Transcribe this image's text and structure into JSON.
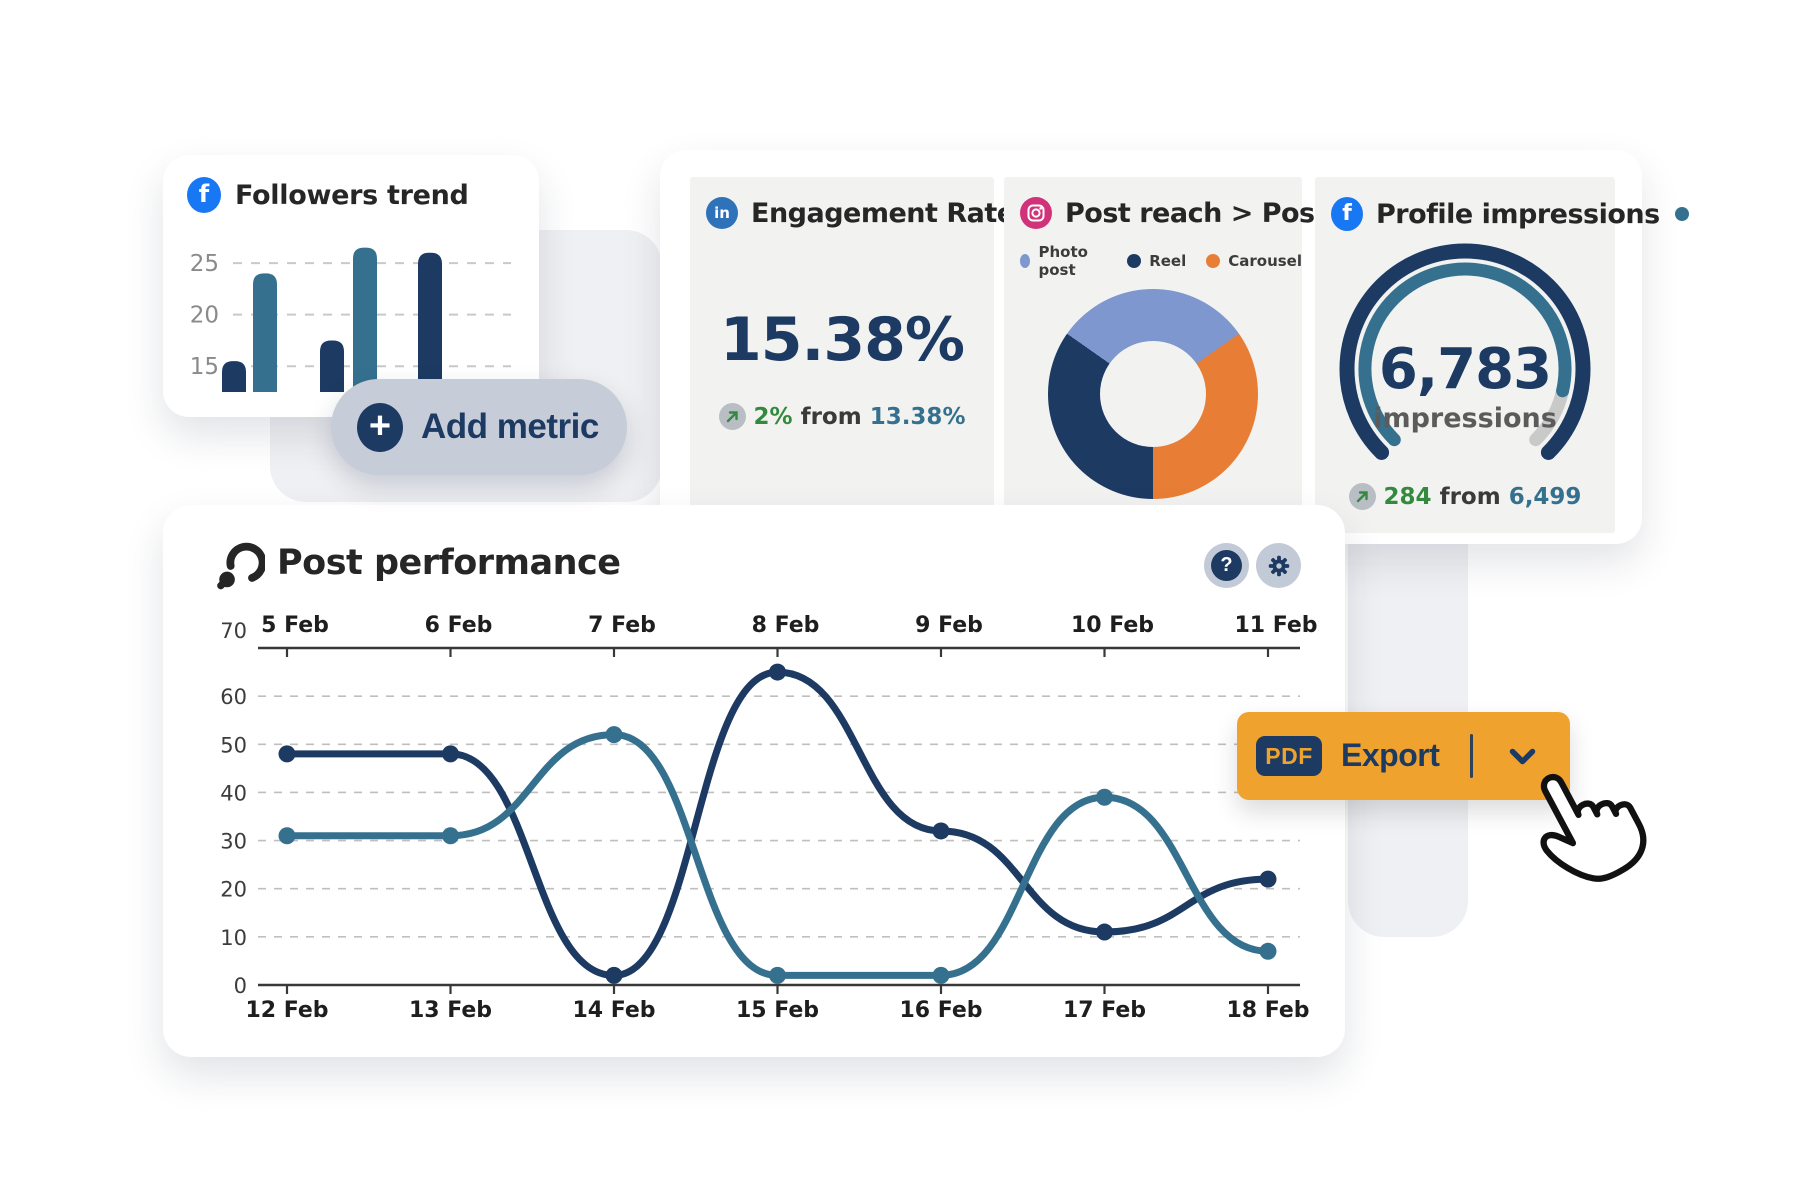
{
  "icons": {
    "facebook_glyph": "f",
    "linkedin_glyph": "in",
    "plus_glyph": "+",
    "help_glyph": "?"
  },
  "colors": {
    "navy": "#1d3a63",
    "teal": "#35718f",
    "periwinkle": "#7e97ce",
    "orange": "#e87d35",
    "export_orange": "#efa32e",
    "green": "#338a3e",
    "card_gray": "#f2f2f1",
    "chip_gray": "#b9bec5"
  },
  "followers_card": {
    "title": "Followers trend"
  },
  "add_metric": {
    "label": "Add metric"
  },
  "engagement_card": {
    "title": "Engagement Rate",
    "value": "15.38%",
    "change": {
      "delta": "2%",
      "from_label": "from",
      "previous": "13.38%"
    }
  },
  "post_reach_card": {
    "title": "Post reach > Post type"
  },
  "impressions_card": {
    "title": "Profile impressions",
    "value": "6,783",
    "unit": "impressions",
    "change": {
      "delta": "284",
      "from_label": "from",
      "previous": "6,499"
    }
  },
  "post_performance": {
    "title": "Post performance"
  },
  "export_button": {
    "badge": "PDF",
    "label": "Export"
  },
  "chart_data": [
    {
      "id": "followers_trend_bars",
      "type": "bar",
      "title": "Followers trend",
      "values": [
        15.5,
        24,
        17.5,
        26.5,
        26
      ],
      "bar_colors": [
        "#1d3a63",
        "#35718f",
        "#1d3a63",
        "#35718f",
        "#1d3a63"
      ],
      "ytick_labels": [
        "25",
        "20",
        "15"
      ],
      "ylim": [
        12.5,
        28.5
      ],
      "grid": "dashed"
    },
    {
      "id": "post_reach_donut",
      "type": "pie",
      "donut": true,
      "labels": [
        "Photo post",
        "Reel",
        "Carousel"
      ],
      "values_pct": [
        30.5,
        34.7,
        34.8
      ],
      "colors": [
        "#7e97ce",
        "#1d3a63",
        "#e87d35"
      ],
      "conic_stops": [
        {
          "color": "#7e97ce",
          "from": 0,
          "to": 55
        },
        {
          "color": "#e87d35",
          "from": 55,
          "to": 180
        },
        {
          "color": "#1d3a63",
          "from": 180,
          "to": 305
        },
        {
          "color": "#7e97ce",
          "from": 305,
          "to": 360
        }
      ],
      "hole_ratio": 0.5
    },
    {
      "id": "impressions_gauge",
      "type": "gauge",
      "value": 6783,
      "value_label": "6,783",
      "unit": "impressions",
      "delta_label": "284",
      "previous_label": "6,499",
      "arc_span_deg": 270,
      "progress": 0.88,
      "outer_color": "#1d3a63",
      "progress_color": "#35718f",
      "remainder_color": "#c9c9c9"
    },
    {
      "id": "post_performance_lines",
      "type": "line",
      "title": "Post performance",
      "x_top_labels": [
        "5 Feb",
        "6 Feb",
        "7 Feb",
        "8 Feb",
        "9 Feb",
        "10 Feb",
        "11 Feb"
      ],
      "x_bottom_labels": [
        "12 Feb",
        "13 Feb",
        "14 Feb",
        "15 Feb",
        "16 Feb",
        "17 Feb",
        "18 Feb"
      ],
      "yticks": [
        0,
        10,
        20,
        30,
        40,
        50,
        60,
        70
      ],
      "ylim": [
        0,
        70
      ],
      "grid": "dashed-horizontal",
      "series": [
        {
          "name": "dark-navy-line",
          "color": "#1d3a63",
          "values": [
            48,
            48,
            2,
            65,
            32,
            11,
            22
          ]
        },
        {
          "name": "teal-line",
          "color": "#35718f",
          "values": [
            31,
            31,
            52,
            2,
            2,
            39,
            7
          ]
        }
      ]
    }
  ]
}
